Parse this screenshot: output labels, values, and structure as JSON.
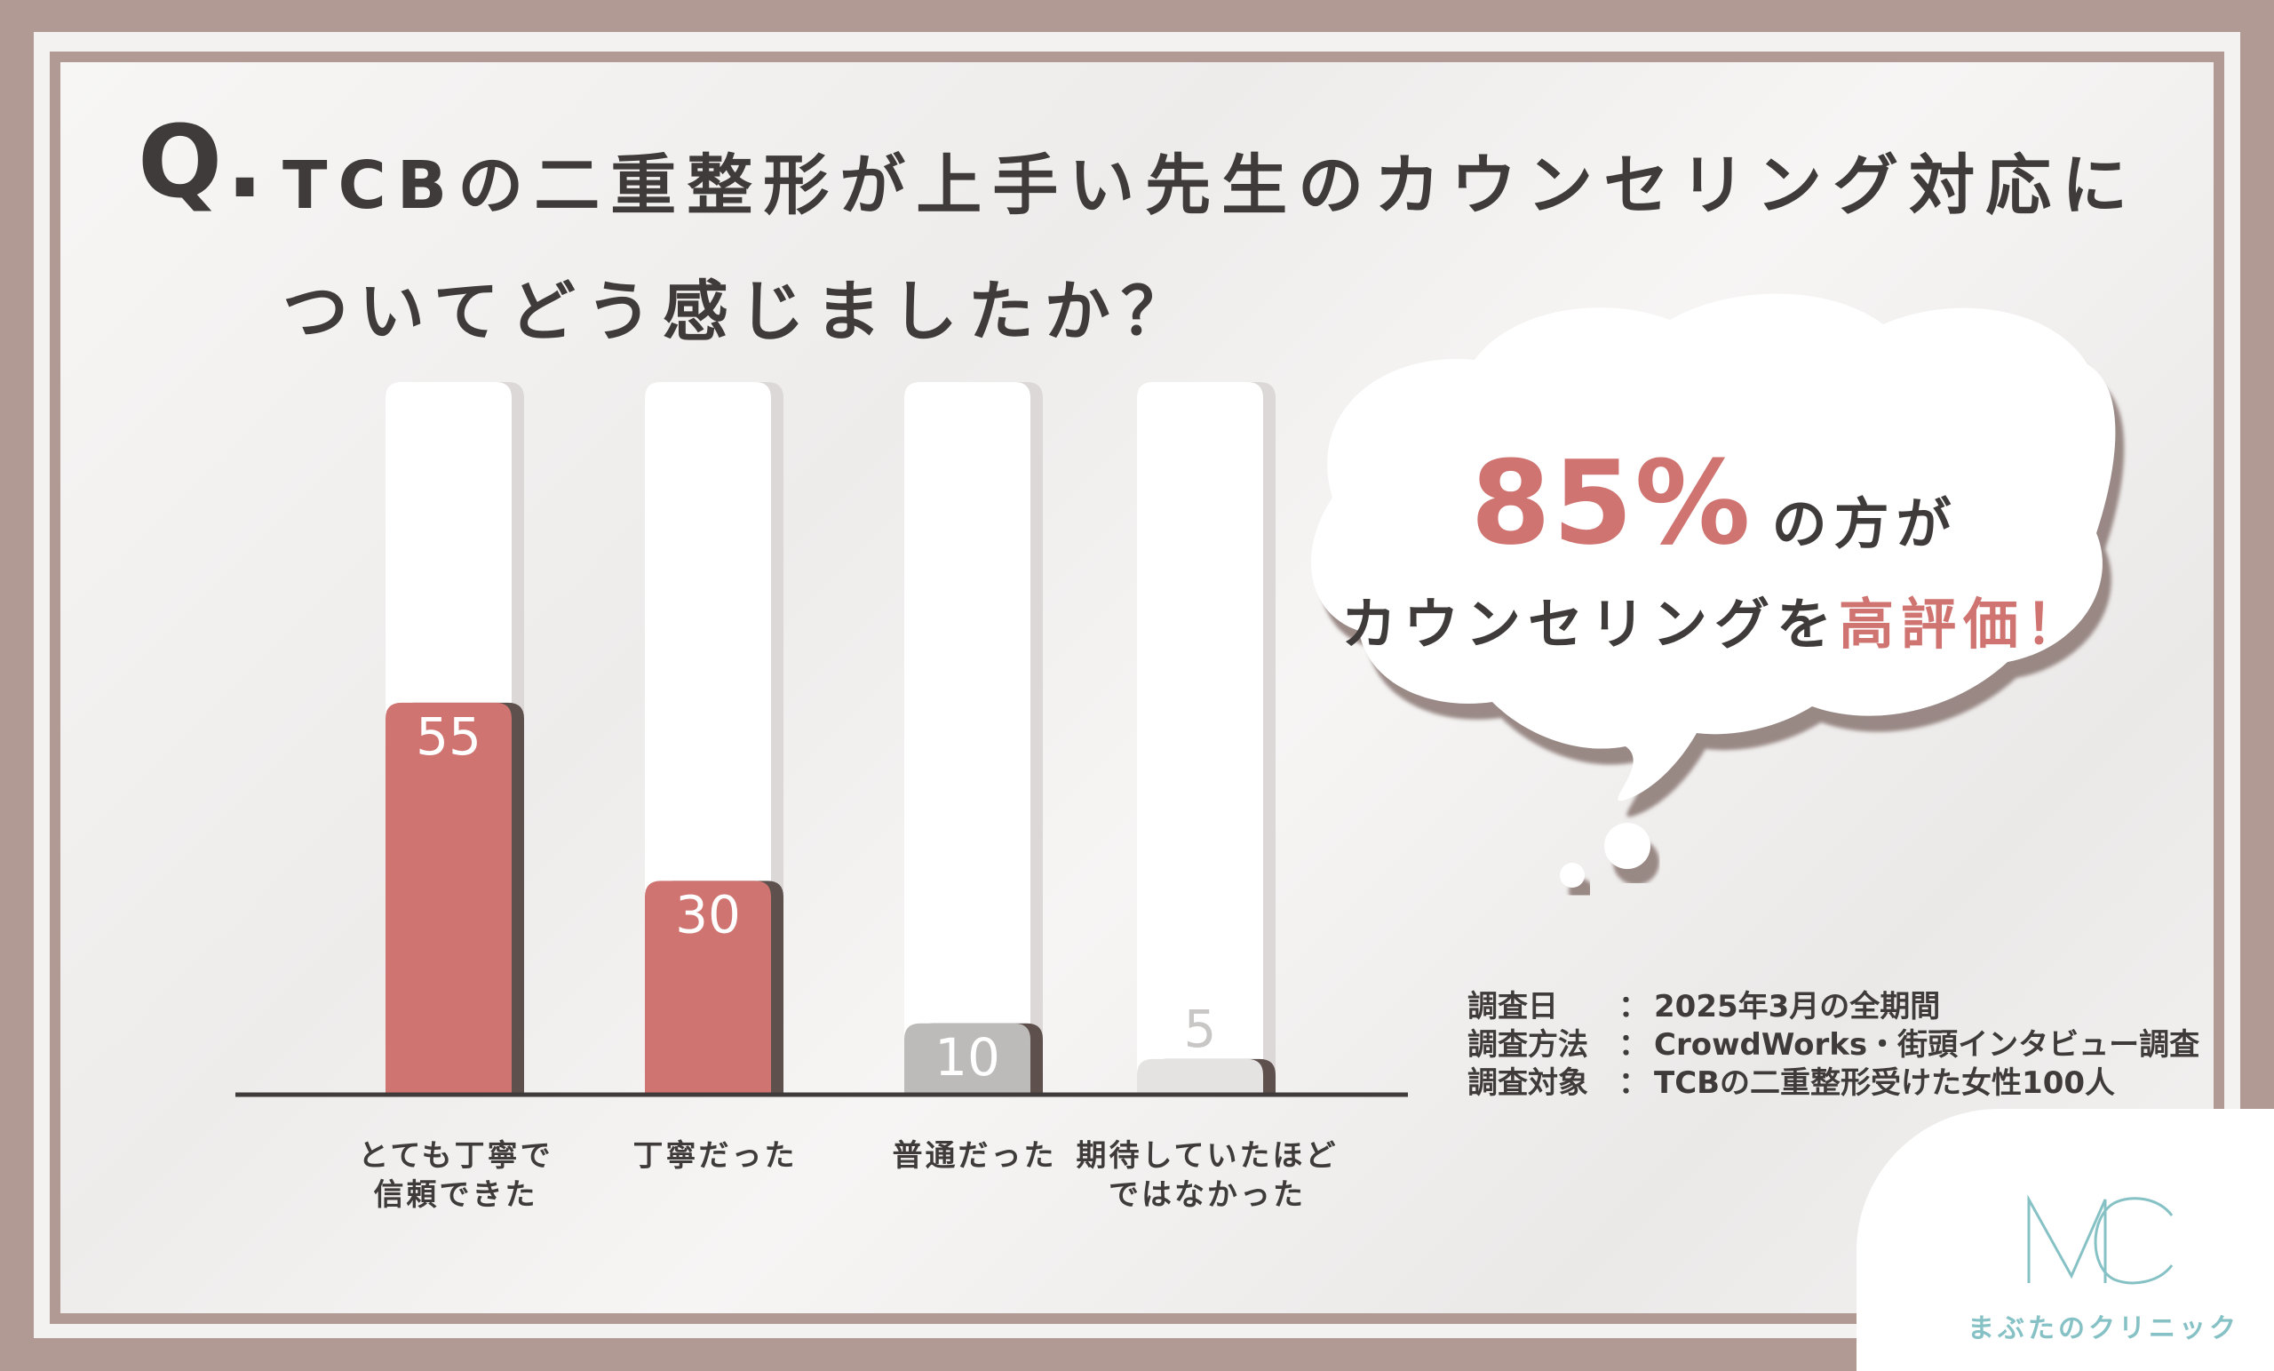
{
  "question": {
    "mark": "Q.",
    "line1": "TCBの二重整形が上手い先生のカウンセリング対応に",
    "line2": "ついてどう感じましたか？"
  },
  "chart_data": {
    "type": "bar",
    "categories": [
      [
        "とても丁寧で",
        "信頼できた"
      ],
      [
        "丁寧だった"
      ],
      [
        "普通だった"
      ],
      [
        "期待していたほど",
        "ではなかった"
      ]
    ],
    "values": [
      55,
      30,
      10,
      5
    ],
    "data_labels": [
      "55",
      "30",
      "10",
      "5"
    ],
    "ylim": [
      0,
      100
    ],
    "colors": [
      "#cf7471",
      "#cf7471",
      "#bdbbba",
      "#e4e3e2"
    ],
    "label_colors": [
      "#ffffff",
      "#ffffff",
      "#ffffff",
      "#c9c7c6"
    ],
    "grid": false,
    "axis_color": "#3f3b3a"
  },
  "bubble": {
    "percent": "85%",
    "percent_suffix": "の方が",
    "line2_prefix": "カウンセリングを",
    "line2_highlight": "高評価！",
    "accent": "#cf7471"
  },
  "survey": {
    "rows": [
      {
        "key": "調査日",
        "value": "2025年3月の全期間"
      },
      {
        "key": "調査方法",
        "value": "CrowdWorks・街頭インタビュー調査"
      },
      {
        "key": "調査対象",
        "value": "TCBの二重整形受けた女性100人"
      }
    ],
    "separator": "："
  },
  "logo": {
    "mark": "MC",
    "text": "まぶたのクリニック",
    "color": "#86c2c5"
  }
}
